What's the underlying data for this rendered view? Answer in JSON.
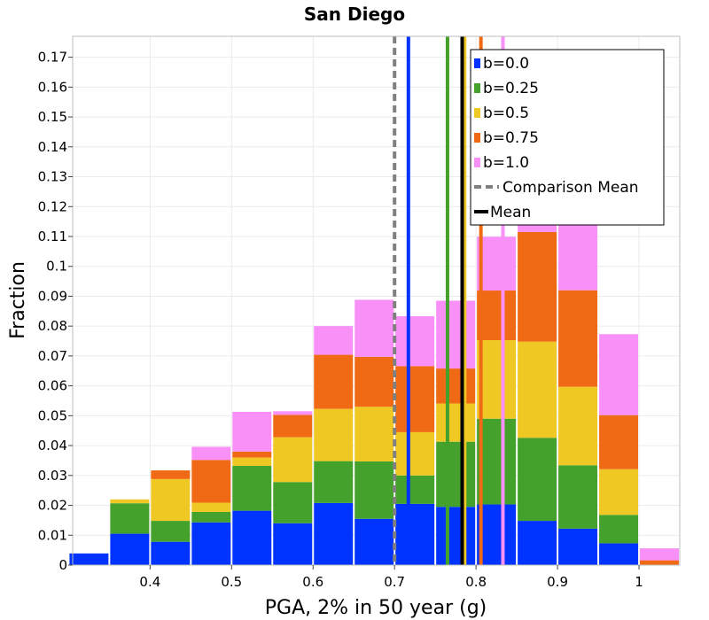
{
  "chart_data": {
    "type": "bar",
    "stacked": true,
    "title": "San Diego",
    "xlabel": "PGA, 2% in 50 year (g)",
    "ylabel": "Fraction",
    "xlim": [
      0.305,
      1.05
    ],
    "ylim": [
      0,
      0.177
    ],
    "bin_width": 0.05,
    "x_ticks": [
      0.4,
      0.5,
      0.6,
      0.7,
      0.8,
      0.9,
      1
    ],
    "x_tick_labels": [
      "0.4",
      "0.5",
      "0.6",
      "0.7",
      "0.8",
      "0.9",
      "1"
    ],
    "y_ticks": [
      0,
      0.01,
      0.02,
      0.03,
      0.04,
      0.05,
      0.06,
      0.07,
      0.08,
      0.09,
      0.1,
      0.11,
      0.12,
      0.13,
      0.14,
      0.15,
      0.16,
      0.17
    ],
    "y_tick_labels": [
      "0",
      "0.01",
      "0.02",
      "0.03",
      "0.04",
      "0.05",
      "0.06",
      "0.07",
      "0.08",
      "0.09",
      "0.1",
      "0.11",
      "0.12",
      "0.13",
      "0.14",
      "0.15",
      "0.16",
      "0.17"
    ],
    "bin_centers": [
      0.325,
      0.375,
      0.425,
      0.475,
      0.525,
      0.575,
      0.625,
      0.675,
      0.725,
      0.775,
      0.825,
      0.875,
      0.925,
      0.975,
      1.025
    ],
    "series": [
      {
        "name": "b=0.0",
        "color": "#0033ff",
        "values": [
          0.0039,
          0.0105,
          0.0078,
          0.0143,
          0.0182,
          0.014,
          0.0208,
          0.0155,
          0.0205,
          0.0195,
          0.0203,
          0.0148,
          0.0122,
          0.0073,
          0.0
        ]
      },
      {
        "name": "b=0.25",
        "color": "#44a12b",
        "values": [
          0.0,
          0.0102,
          0.007,
          0.0035,
          0.015,
          0.0138,
          0.014,
          0.0192,
          0.0095,
          0.0218,
          0.0287,
          0.0278,
          0.0212,
          0.0095,
          0.0
        ]
      },
      {
        "name": "b=0.5",
        "color": "#f0c824",
        "values": [
          0.0,
          0.0013,
          0.014,
          0.0031,
          0.0028,
          0.015,
          0.0175,
          0.0183,
          0.0145,
          0.0128,
          0.0263,
          0.0322,
          0.0263,
          0.0153,
          0.0
        ]
      },
      {
        "name": "b=0.75",
        "color": "#f06a15",
        "values": [
          0.0,
          0.0,
          0.0029,
          0.0143,
          0.002,
          0.0075,
          0.0181,
          0.0167,
          0.0221,
          0.0117,
          0.0166,
          0.0367,
          0.0323,
          0.0181,
          0.0016
        ]
      },
      {
        "name": "b=1.0",
        "color": "#f890f8",
        "values": [
          0.0,
          0.0,
          0.0,
          0.0044,
          0.0133,
          0.0012,
          0.0096,
          0.0191,
          0.0167,
          0.0227,
          0.018,
          0.0231,
          0.0409,
          0.0271,
          0.004
        ]
      }
    ],
    "mean_lines": [
      {
        "name": "b=0.0",
        "x": 0.717,
        "color": "#0033ff"
      },
      {
        "name": "b=0.25",
        "x": 0.765,
        "color": "#44a12b"
      },
      {
        "name": "b=0.5",
        "x": 0.786,
        "color": "#f0c824"
      },
      {
        "name": "b=0.75",
        "x": 0.806,
        "color": "#f06a15"
      },
      {
        "name": "b=1.0",
        "x": 0.833,
        "color": "#f890f8"
      }
    ],
    "comparison_mean": {
      "x": 0.7,
      "color": "#808080",
      "style": "dashed"
    },
    "overall_mean": {
      "x": 0.783,
      "color": "#000000"
    },
    "legend": {
      "position": "top-right",
      "entries": [
        {
          "label": "b=0.0",
          "color": "#0033ff",
          "marker": "square"
        },
        {
          "label": "b=0.25",
          "color": "#44a12b",
          "marker": "square"
        },
        {
          "label": "b=0.5",
          "color": "#f0c824",
          "marker": "square"
        },
        {
          "label": "b=0.75",
          "color": "#f06a15",
          "marker": "square"
        },
        {
          "label": "b=1.0",
          "color": "#f890f8",
          "marker": "square"
        },
        {
          "label": "Comparison Mean",
          "color": "#808080",
          "marker": "dashed-line"
        },
        {
          "label": "Mean",
          "color": "#000000",
          "marker": "line"
        }
      ]
    }
  }
}
